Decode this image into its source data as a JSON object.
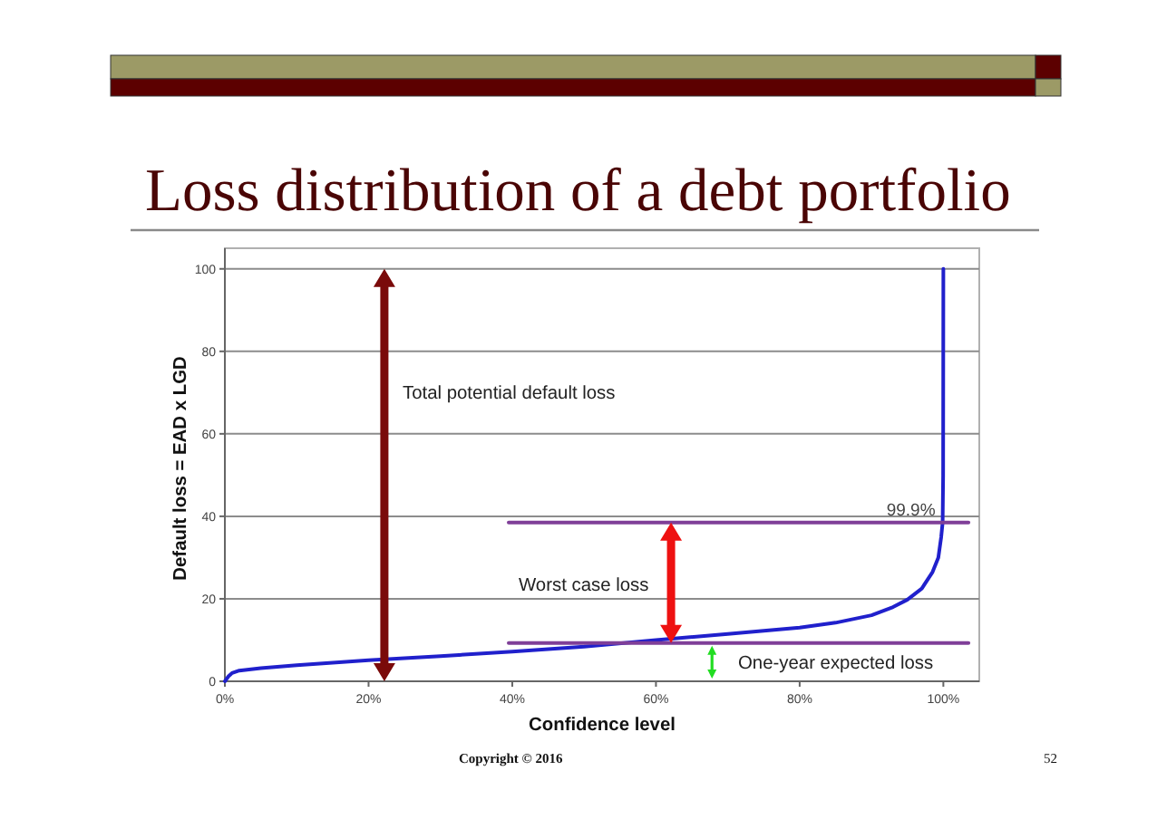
{
  "chart_data": {
    "type": "line",
    "title": "Loss distribution of a debt portfolio",
    "xlabel": "Confidence level",
    "ylabel": "Default loss = EAD x LGD",
    "series": [
      {
        "color": "#2020cc",
        "x": [
          0,
          0.5,
          1,
          2,
          5,
          10,
          20,
          30,
          40,
          50,
          60,
          70,
          80,
          85,
          90,
          93,
          95,
          97,
          98.5,
          99.3,
          99.7,
          99.9,
          99.97,
          100
        ],
        "values": [
          0,
          1.2,
          2,
          2.6,
          3.2,
          3.9,
          5.1,
          6.1,
          7.2,
          8.4,
          10,
          11.5,
          13,
          14.2,
          16,
          18,
          19.8,
          22.5,
          26.5,
          30,
          35,
          38.5,
          50,
          100
        ]
      },
      {
        "color": "#7f3f98",
        "x": [
          39.5,
          103.5
        ],
        "values": [
          38.5,
          38.5
        ]
      },
      {
        "color": "#7f3f98",
        "x": [
          39.5,
          103.5
        ],
        "values": [
          9.3,
          9.3
        ]
      }
    ],
    "xlim": [
      0,
      105
    ],
    "xticks": [
      {
        "value": 0,
        "label": "0%"
      },
      {
        "value": 20,
        "label": "20%"
      },
      {
        "value": 40,
        "label": "40%"
      },
      {
        "value": 60,
        "label": "60%"
      },
      {
        "value": 80,
        "label": "80%"
      },
      {
        "value": 100,
        "label": "100%"
      }
    ],
    "ylim": [
      0,
      105
    ],
    "yticks": [
      0,
      20,
      40,
      60,
      80,
      100
    ],
    "grid": "y",
    "annotations": [
      {
        "text": "99.9%",
        "x": 99.9,
        "y": 38.5
      },
      "Total potential default loss",
      "Worst case loss",
      "One-year expected loss",
      "Copyright © 2016",
      "52"
    ]
  }
}
